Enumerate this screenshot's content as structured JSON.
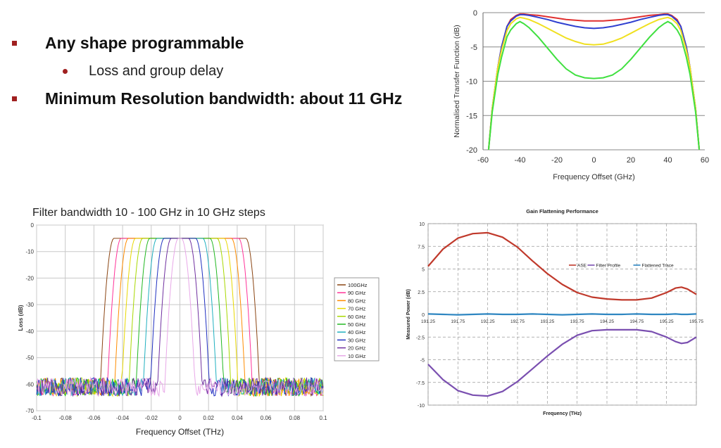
{
  "bullets": [
    {
      "text": "Any shape programmable"
    },
    {
      "text": "Loss and group delay"
    },
    {
      "text": "Minimum Resolution bandwidth: about 11 GHz"
    }
  ],
  "colors": {
    "bullet": "#a02020"
  },
  "chart_data": [
    {
      "type": "line",
      "title": "",
      "xlabel": "Frequency Offset (GHz)",
      "ylabel": "Normalised Transfer Function (dB)",
      "xlim": [
        -60,
        60
      ],
      "ylim": [
        -20,
        0
      ],
      "xticks": [
        -60,
        -40,
        -20,
        0,
        20,
        40,
        60
      ],
      "yticks": [
        0,
        -5,
        -10,
        -15,
        -20
      ],
      "grid": "horizontal",
      "x": [
        -57,
        -55,
        -52,
        -50,
        -47,
        -45,
        -42,
        -40,
        -38,
        -35,
        -30,
        -25,
        -20,
        -15,
        -10,
        -5,
        0,
        5,
        10,
        15,
        20,
        25,
        30,
        35,
        38,
        40,
        42,
        45,
        47,
        50,
        52,
        55,
        57
      ],
      "series": [
        {
          "color": "#e03030",
          "values": [
            -20,
            -14,
            -8,
            -5,
            -2,
            -1,
            -0.4,
            -0.2,
            -0.2,
            -0.3,
            -0.4,
            -0.6,
            -0.8,
            -1.0,
            -1.1,
            -1.2,
            -1.2,
            -1.2,
            -1.1,
            -1.0,
            -0.8,
            -0.6,
            -0.4,
            -0.3,
            -0.2,
            -0.2,
            -0.4,
            -1,
            -2,
            -5,
            -8,
            -14,
            -20
          ]
        },
        {
          "color": "#3040d0",
          "values": [
            -20,
            -14,
            -8,
            -5,
            -2,
            -1.2,
            -0.5,
            -0.3,
            -0.3,
            -0.4,
            -0.7,
            -1.0,
            -1.4,
            -1.7,
            -2.0,
            -2.2,
            -2.3,
            -2.2,
            -2.0,
            -1.7,
            -1.4,
            -1.0,
            -0.7,
            -0.4,
            -0.3,
            -0.3,
            -0.5,
            -1.2,
            -2,
            -5,
            -8,
            -14,
            -20
          ]
        },
        {
          "color": "#f0e020",
          "values": [
            -20,
            -14,
            -8,
            -5.5,
            -2.6,
            -1.6,
            -0.9,
            -0.7,
            -0.8,
            -1.0,
            -1.6,
            -2.3,
            -3.0,
            -3.7,
            -4.2,
            -4.6,
            -4.7,
            -4.6,
            -4.2,
            -3.7,
            -3.0,
            -2.3,
            -1.6,
            -1.0,
            -0.8,
            -0.7,
            -0.9,
            -1.6,
            -2.6,
            -5.5,
            -8,
            -14,
            -20
          ]
        },
        {
          "color": "#40e040",
          "values": [
            -20,
            -14.5,
            -9,
            -6.5,
            -3.5,
            -2.5,
            -1.6,
            -1.3,
            -1.6,
            -2.2,
            -3.6,
            -5.2,
            -6.8,
            -8.2,
            -9.1,
            -9.5,
            -9.6,
            -9.5,
            -9.1,
            -8.2,
            -6.8,
            -5.2,
            -3.6,
            -2.2,
            -1.6,
            -1.3,
            -1.6,
            -2.5,
            -3.5,
            -6.5,
            -9,
            -14.5,
            -20
          ]
        }
      ]
    },
    {
      "type": "line",
      "title": "Filter bandwidth 10 - 100 GHz in 10 GHz steps",
      "xlabel": "Frequency Offset (THz)",
      "ylabel": "Loss (dB)",
      "xlim": [
        -0.1,
        0.1
      ],
      "ylim": [
        -70,
        0
      ],
      "xticks": [
        -0.1,
        -0.08,
        -0.06,
        -0.04,
        -0.02,
        0,
        0.02,
        0.04,
        0.06,
        0.08,
        0.1
      ],
      "yticks": [
        0,
        -10,
        -20,
        -30,
        -40,
        -50,
        -60,
        -70
      ],
      "grid": "both",
      "legend": "right",
      "peak": -5,
      "noise_floor": -61,
      "series": [
        {
          "name": "100GHz",
          "color": "#8b4513",
          "bandwidth_thz": 0.1
        },
        {
          "name": "90 GHz",
          "color": "#ff3399",
          "bandwidth_thz": 0.09
        },
        {
          "name": "80 GHz",
          "color": "#ff8c00",
          "bandwidth_thz": 0.08
        },
        {
          "name": "70 GHz",
          "color": "#e8d800",
          "bandwidth_thz": 0.07
        },
        {
          "name": "60 GHz",
          "color": "#a8d800",
          "bandwidth_thz": 0.06
        },
        {
          "name": "50 GHz",
          "color": "#22b822",
          "bandwidth_thz": 0.05
        },
        {
          "name": "40 GHz",
          "color": "#20b0c0",
          "bandwidth_thz": 0.04
        },
        {
          "name": "30 GHz",
          "color": "#2030c0",
          "bandwidth_thz": 0.03
        },
        {
          "name": "20 GHz",
          "color": "#7030a0",
          "bandwidth_thz": 0.02
        },
        {
          "name": "10 GHz",
          "color": "#e8a8e8",
          "bandwidth_thz": 0.01
        }
      ]
    },
    {
      "type": "line",
      "title": "Gain Flattening Performance",
      "xlabel": "Frequency (THz)",
      "ylabel": "Measured Power (dB)",
      "xlim": [
        191.25,
        195.75
      ],
      "ylim": [
        -10,
        10
      ],
      "xticks": [
        191.25,
        191.75,
        192.25,
        192.75,
        193.25,
        193.75,
        194.25,
        194.75,
        195.25,
        195.75
      ],
      "xtick_labels": [
        "191.25",
        "191.75",
        "192.25",
        "192.75",
        "193.25",
        "193.75",
        "194.25",
        "194.75",
        "195.25",
        "195.75"
      ],
      "yticks": [
        10,
        7.5,
        5,
        2.5,
        0,
        -2.5,
        -5,
        -7.5,
        -10
      ],
      "ytick_labels": [
        "10",
        "7.5",
        "5",
        "2.5",
        "0",
        "-2.5",
        "-5",
        "-7.5",
        "-10"
      ],
      "grid": "both",
      "legend": "top-right",
      "x": [
        191.25,
        191.5,
        191.75,
        192.0,
        192.25,
        192.5,
        192.75,
        193.0,
        193.25,
        193.5,
        193.75,
        194.0,
        194.25,
        194.5,
        194.75,
        195.0,
        195.25,
        195.4,
        195.5,
        195.6,
        195.75
      ],
      "series": [
        {
          "name": "ASE",
          "color": "#c0392b",
          "values": [
            5.3,
            7.2,
            8.4,
            8.9,
            9.0,
            8.5,
            7.4,
            5.9,
            4.5,
            3.3,
            2.4,
            1.9,
            1.7,
            1.6,
            1.6,
            1.8,
            2.4,
            2.9,
            3.0,
            2.8,
            2.2
          ]
        },
        {
          "name": "Filter Profile",
          "color": "#7a4fb0",
          "values": [
            -5.5,
            -7.2,
            -8.4,
            -8.9,
            -9.0,
            -8.5,
            -7.4,
            -6.0,
            -4.6,
            -3.3,
            -2.3,
            -1.8,
            -1.7,
            -1.7,
            -1.7,
            -1.9,
            -2.5,
            -3.0,
            -3.2,
            -3.1,
            -2.5
          ]
        },
        {
          "name": "Flattened Trace",
          "color": "#2e86c1",
          "values": [
            0.05,
            0.0,
            -0.05,
            0.0,
            0.05,
            0.0,
            0.0,
            0.05,
            0.0,
            -0.05,
            0.0,
            0.05,
            0.0,
            0.0,
            0.05,
            0.0,
            0.0,
            0.05,
            0.0,
            0.0,
            0.05
          ]
        }
      ]
    }
  ]
}
